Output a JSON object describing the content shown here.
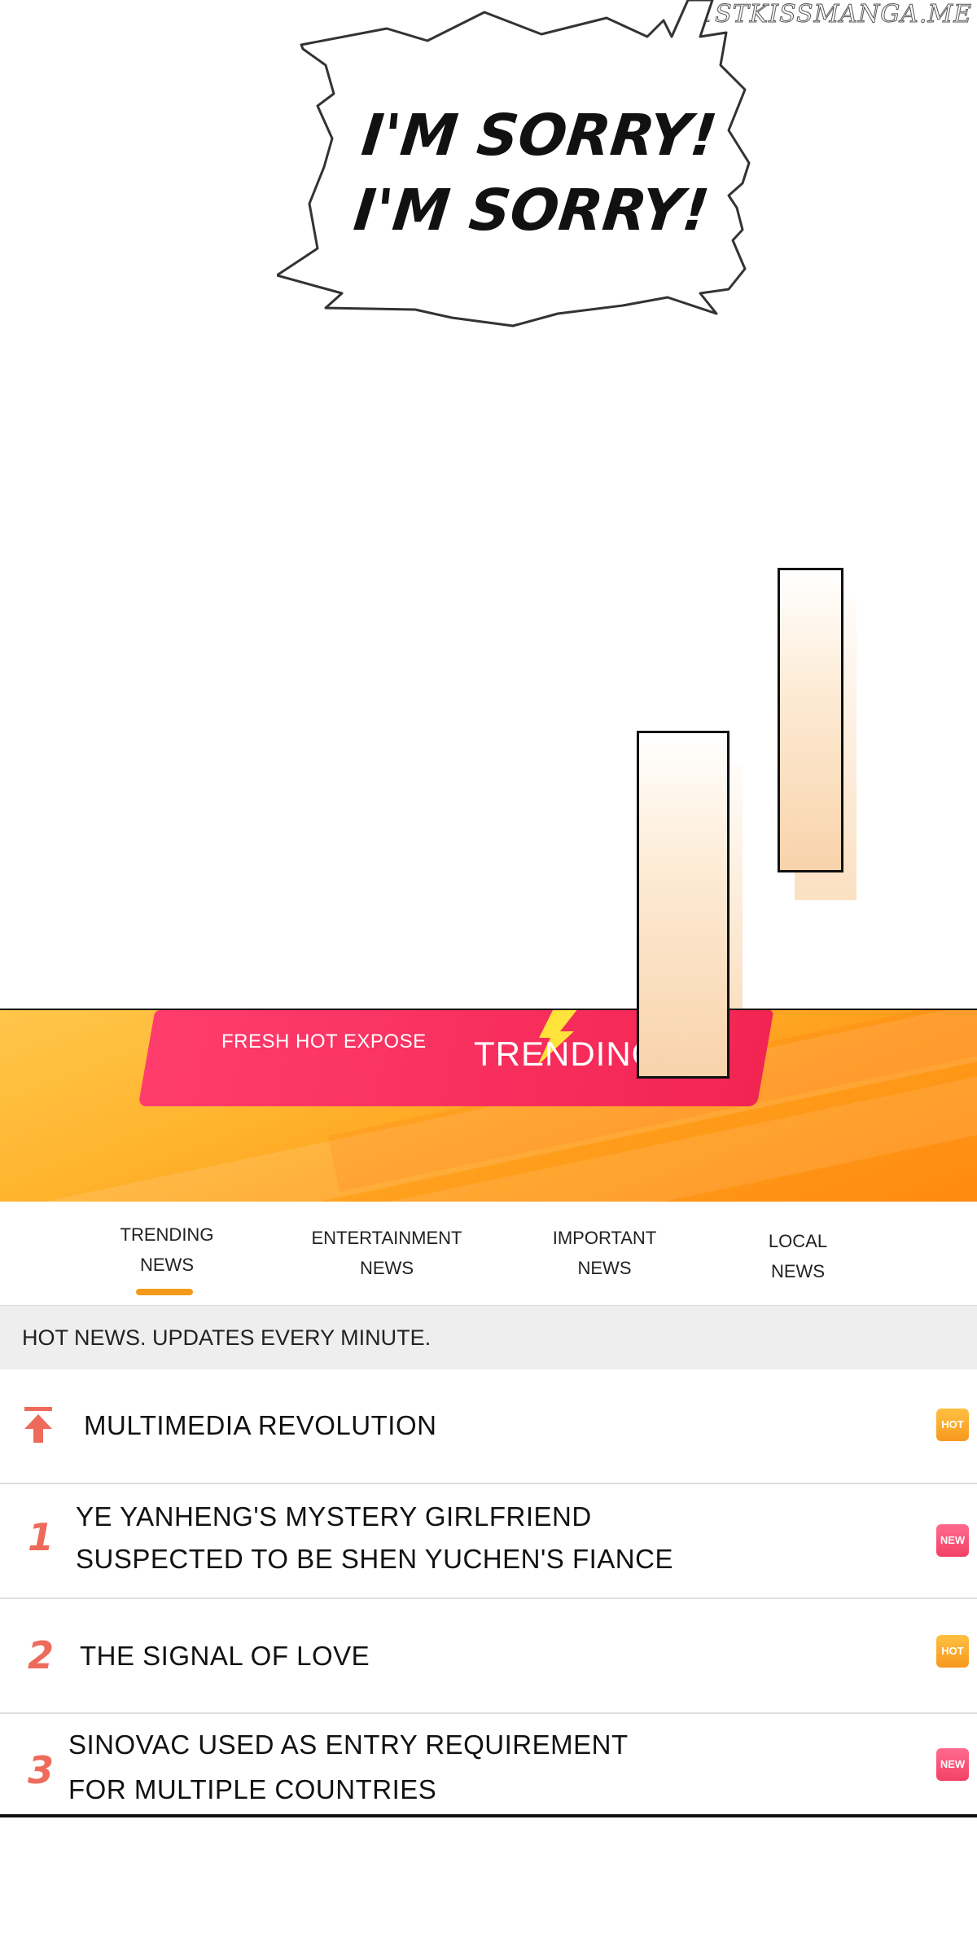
{
  "watermark": "1STKISSMANGA.ME",
  "speech_bubble": {
    "line1": "I'M SORRY!",
    "line2": "I'M SORRY!"
  },
  "banner": {
    "left_text": "FRESH HOT EXPOSE",
    "right_text": "TRENDING"
  },
  "tabs": [
    {
      "line1": "TRENDING",
      "line2": "NEWS",
      "active": true
    },
    {
      "line1": "ENTERTAINMENT",
      "line2": "NEWS",
      "active": false
    },
    {
      "line1": "IMPORTANT",
      "line2": "NEWS",
      "active": false
    },
    {
      "line1": "LOCAL",
      "line2": "NEWS",
      "active": false
    }
  ],
  "notice": "HOT NEWS. UPDATES EVERY MINUTE.",
  "news": [
    {
      "rank_icon": "pin-top-icon",
      "line1": "MULTIMEDIA REVOLUTION",
      "badge": "HOT"
    },
    {
      "rank": "1",
      "line1": "YE YANHENG'S MYSTERY GIRLFRIEND",
      "line2": "SUSPECTED TO BE SHEN YUCHEN'S FIANCE",
      "badge": "NEW"
    },
    {
      "rank": "2",
      "line1": "THE SIGNAL OF LOVE",
      "badge": "HOT"
    },
    {
      "rank": "3",
      "line1": "SINOVAC USED AS ENTRY REQUIREMENT",
      "line2": "FOR MULTIPLE COUNTRIES",
      "badge": "NEW"
    }
  ],
  "colors": {
    "accent_orange": "#f39a1c",
    "hot_badge": "#f7991f",
    "new_badge": "#f24166",
    "rank": "#ee6b5b",
    "banner_red": "#f22452"
  }
}
